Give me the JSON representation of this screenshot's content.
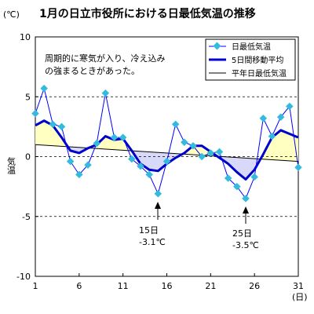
{
  "header": {
    "unit": "(℃)",
    "title": "1月の日立市役所における日最低気温の推移"
  },
  "annotations": {
    "note_line1": "周期的に寒気が入り、冷え込み",
    "note_line2": "の強まるときがあった。",
    "callout1_day": "15日",
    "callout1_temp": "-3.1℃",
    "callout2_day": "25日",
    "callout2_temp": "-3.5℃"
  },
  "colors": {
    "daily": "#33bbdd",
    "daily_line": "#0000ff",
    "moving_avg": "#0000cc",
    "normal": "#000000",
    "fill_above": "#ffffc0",
    "fill_below": "#d8d8f8"
  },
  "chart_data": {
    "type": "line",
    "title": "1月の日立市役所における日最低気温の推移",
    "xlabel": "(日)",
    "ylabel": "気温",
    "unit_label": "(℃)",
    "xlim": [
      1,
      31
    ],
    "ylim": [
      -10,
      10
    ],
    "x_ticks": [
      1,
      6,
      11,
      16,
      21,
      26,
      31
    ],
    "y_ticks": [
      10,
      5,
      0,
      -5,
      -10
    ],
    "grid": "dashed at 5, 0, -5",
    "legend_position": "top-right",
    "x": [
      1,
      2,
      3,
      4,
      5,
      6,
      7,
      8,
      9,
      10,
      11,
      12,
      13,
      14,
      15,
      16,
      17,
      18,
      19,
      20,
      21,
      22,
      23,
      24,
      25,
      26,
      27,
      28,
      29,
      30,
      31
    ],
    "series": [
      {
        "name": "日最低気温",
        "style": "line-markers",
        "values": [
          3.6,
          5.7,
          2.7,
          2.5,
          -0.4,
          -1.5,
          -0.7,
          1.1,
          5.3,
          1.6,
          1.6,
          -0.2,
          -0.8,
          -1.5,
          -3.1,
          -0.4,
          2.7,
          1.2,
          0.9,
          0.0,
          0.3,
          0.4,
          -1.8,
          -2.5,
          -3.5,
          -1.7,
          3.2,
          1.7,
          3.3,
          4.2,
          -0.9
        ]
      },
      {
        "name": "5日間移動平均",
        "style": "thick-line",
        "x": [
          1,
          2,
          3,
          4,
          5,
          6,
          7,
          8,
          9,
          10,
          11,
          12,
          13,
          14,
          15,
          16,
          17,
          18,
          19,
          20,
          21,
          22,
          23,
          24,
          25,
          26,
          27,
          28,
          29,
          30,
          31
        ],
        "values": [
          2.6,
          3.0,
          2.6,
          1.6,
          0.5,
          0.3,
          0.7,
          1.0,
          1.7,
          1.4,
          1.5,
          0.5,
          -0.6,
          -1.1,
          -1.2,
          -0.6,
          -0.1,
          0.3,
          0.9,
          0.9,
          0.4,
          -0.1,
          -0.6,
          -1.3,
          -1.9,
          -1.1,
          0.2,
          1.6,
          2.2,
          1.9,
          1.6
        ]
      },
      {
        "name": "平年日最低気温",
        "style": "thin-line",
        "x": [
          1,
          31
        ],
        "values": [
          1.0,
          -0.4
        ]
      }
    ]
  }
}
